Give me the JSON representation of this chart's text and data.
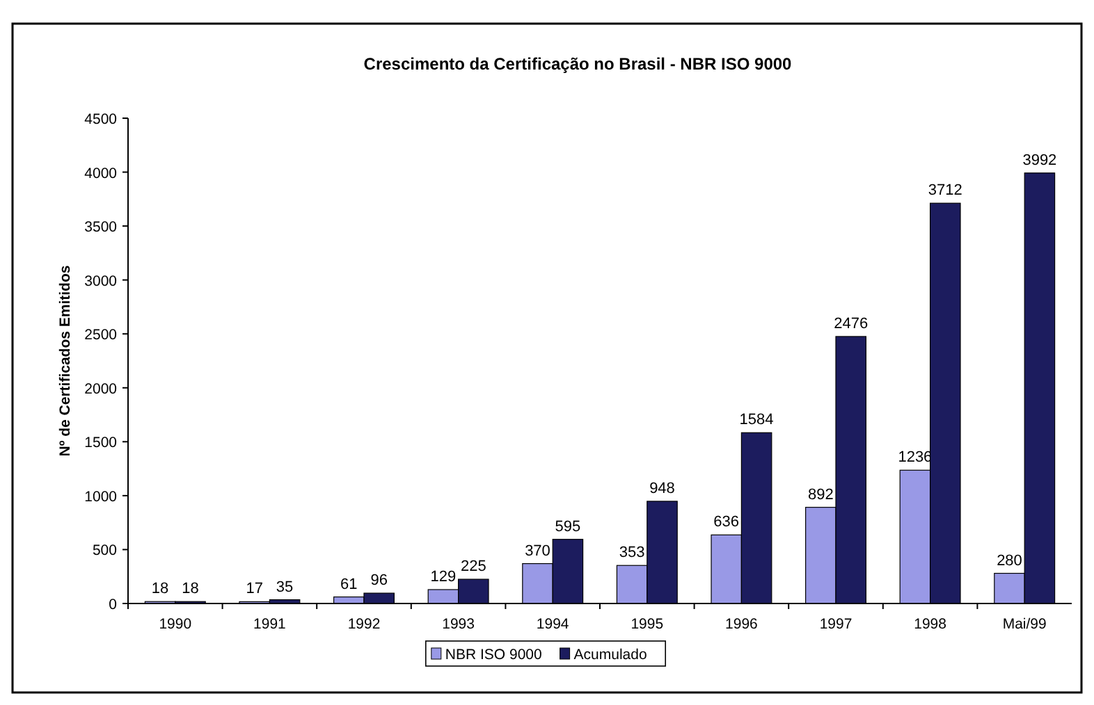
{
  "chart_data": {
    "type": "bar",
    "title": "Crescimento da Certificação no Brasil - NBR ISO 9000",
    "ylabel": "Nº de Certificados Emitidos",
    "categories": [
      "1990",
      "1991",
      "1992",
      "1993",
      "1994",
      "1995",
      "1996",
      "1997",
      "1998",
      "Mai/99"
    ],
    "series": [
      {
        "name": "NBR ISO 9000",
        "color": "#9999e6",
        "values": [
          18,
          17,
          61,
          129,
          370,
          353,
          636,
          892,
          1236,
          280
        ]
      },
      {
        "name": "Acumulado",
        "color": "#1c1c5e",
        "values": [
          18,
          35,
          96,
          225,
          595,
          948,
          1584,
          2476,
          3712,
          3992
        ]
      }
    ],
    "ylim": [
      0,
      4500
    ],
    "yticks": [
      0,
      500,
      1000,
      1500,
      2000,
      2500,
      3000,
      3500,
      4000,
      4500
    ],
    "data_labels": true,
    "legend": "bottom"
  }
}
